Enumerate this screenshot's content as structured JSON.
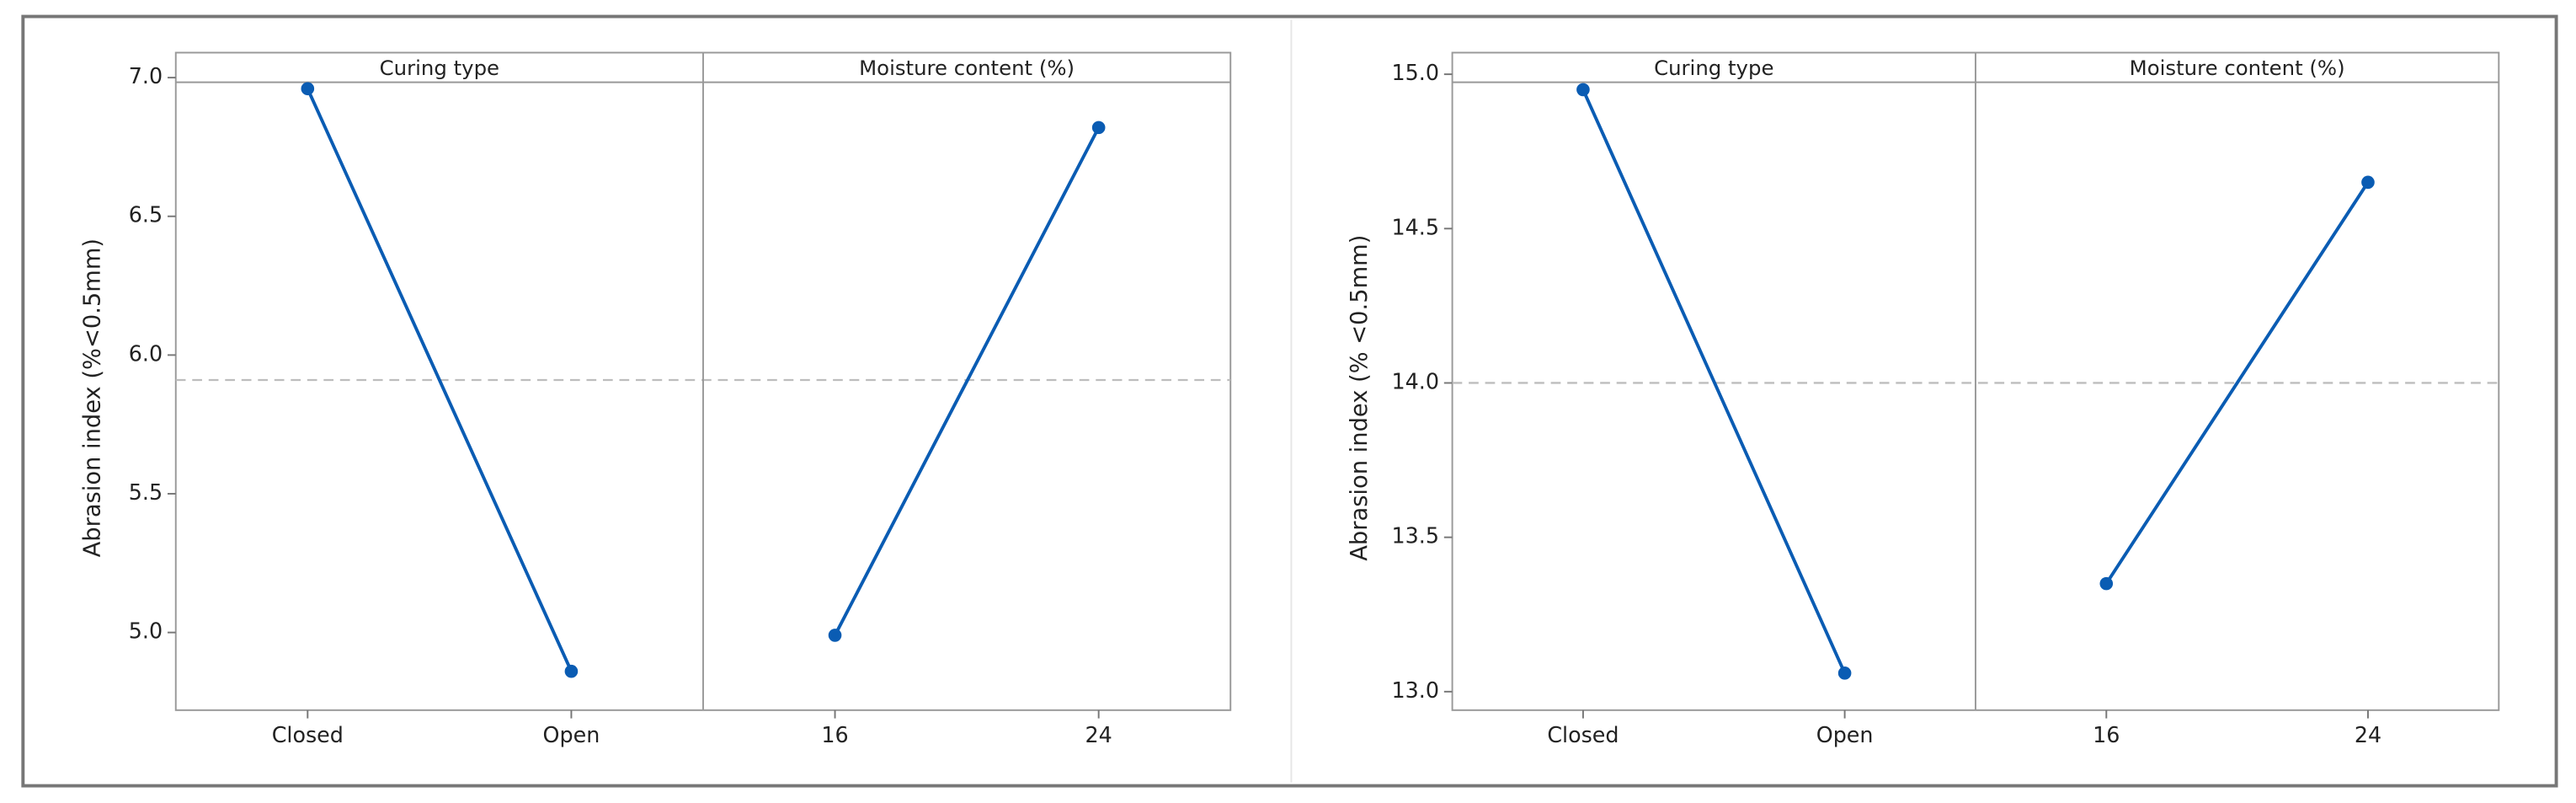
{
  "chart_data": [
    {
      "type": "line",
      "y_label": "Abrasion index (%<0.5mm)",
      "color": "#0a5cb3",
      "ylim": [
        4.72,
        7.09
      ],
      "yticks": [
        {
          "value": 5,
          "label": "5.0"
        },
        5.5,
        {
          "value": 6,
          "label": "6.0"
        },
        6.5,
        {
          "value": 7,
          "label": "7.0"
        }
      ],
      "mean": 5.91,
      "panels": [
        {
          "title": "Curing type",
          "categories": [
            "Closed",
            "Open"
          ],
          "values": [
            6.96,
            4.86
          ]
        },
        {
          "title": "Moisture content (%)",
          "categories": [
            "16",
            "24"
          ],
          "values": [
            4.99,
            6.82
          ]
        }
      ]
    },
    {
      "type": "line",
      "y_label": "Abrasion index (% <0.5mm)",
      "color": "#0a5cb3",
      "ylim": [
        12.94,
        15.07
      ],
      "yticks": [
        {
          "value": 13,
          "label": "13.0"
        },
        13.5,
        {
          "value": 14,
          "label": "14.0"
        },
        14.5,
        {
          "value": 15,
          "label": "15.0"
        }
      ],
      "mean": 14.0,
      "panels": [
        {
          "title": "Curing type",
          "categories": [
            "Closed",
            "Open"
          ],
          "values": [
            14.95,
            13.06
          ]
        },
        {
          "title": "Moisture content (%)",
          "categories": [
            "16",
            "24"
          ],
          "values": [
            13.35,
            14.65
          ]
        }
      ]
    }
  ]
}
